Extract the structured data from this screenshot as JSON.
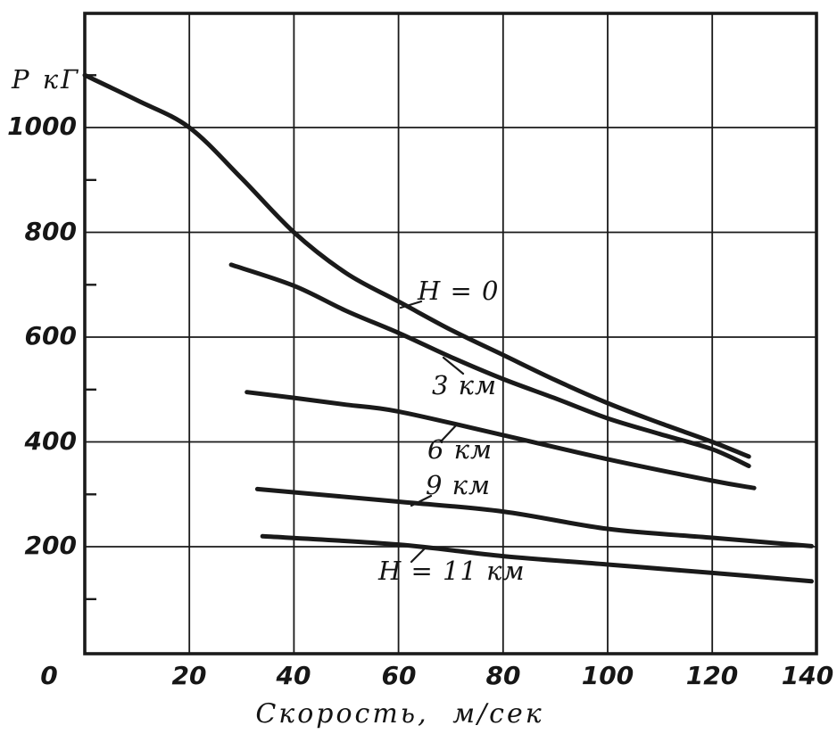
{
  "figure": {
    "background_color": "#ffffff",
    "ink_color": "#1a1a1a"
  },
  "chart_data": {
    "type": "line",
    "title": "",
    "xlabel": "Скорость,  м/сек",
    "ylabel": "Р кГ",
    "x_unit": "м/сек",
    "y_unit": "кГ",
    "xlim": [
      0,
      140
    ],
    "ylim": [
      0,
      1220
    ],
    "x_ticks": [
      0,
      20,
      40,
      60,
      80,
      100,
      120,
      140
    ],
    "y_ticks": [
      0,
      200,
      400,
      600,
      800,
      1000
    ],
    "grid": true,
    "legend_position": "inline-curve-labels",
    "series": [
      {
        "name": "H = 0",
        "points": [
          [
            0,
            1100
          ],
          [
            10,
            1052
          ],
          [
            20,
            1000
          ],
          [
            30,
            903
          ],
          [
            40,
            800
          ],
          [
            50,
            722
          ],
          [
            60,
            668
          ],
          [
            70,
            614
          ],
          [
            80,
            566
          ],
          [
            90,
            518
          ],
          [
            100,
            474
          ],
          [
            110,
            436
          ],
          [
            120,
            400
          ],
          [
            127,
            372
          ]
        ]
      },
      {
        "name": "3 км",
        "points": [
          [
            28,
            738
          ],
          [
            40,
            698
          ],
          [
            50,
            650
          ],
          [
            60,
            608
          ],
          [
            70,
            562
          ],
          [
            80,
            520
          ],
          [
            90,
            483
          ],
          [
            100,
            445
          ],
          [
            110,
            415
          ],
          [
            120,
            386
          ],
          [
            127,
            354
          ]
        ]
      },
      {
        "name": "6 км",
        "points": [
          [
            31,
            495
          ],
          [
            40,
            484
          ],
          [
            50,
            471
          ],
          [
            60,
            458
          ],
          [
            80,
            413
          ],
          [
            100,
            367
          ],
          [
            120,
            326
          ],
          [
            128,
            312
          ]
        ]
      },
      {
        "name": "9 км",
        "points": [
          [
            33,
            310
          ],
          [
            60,
            286
          ],
          [
            80,
            267
          ],
          [
            100,
            234
          ],
          [
            120,
            217
          ],
          [
            139,
            201
          ]
        ]
      },
      {
        "name": "H = 11 км",
        "points": [
          [
            34,
            220
          ],
          [
            60,
            204
          ],
          [
            80,
            182
          ],
          [
            100,
            166
          ],
          [
            120,
            150
          ],
          [
            139,
            134
          ]
        ]
      }
    ]
  }
}
